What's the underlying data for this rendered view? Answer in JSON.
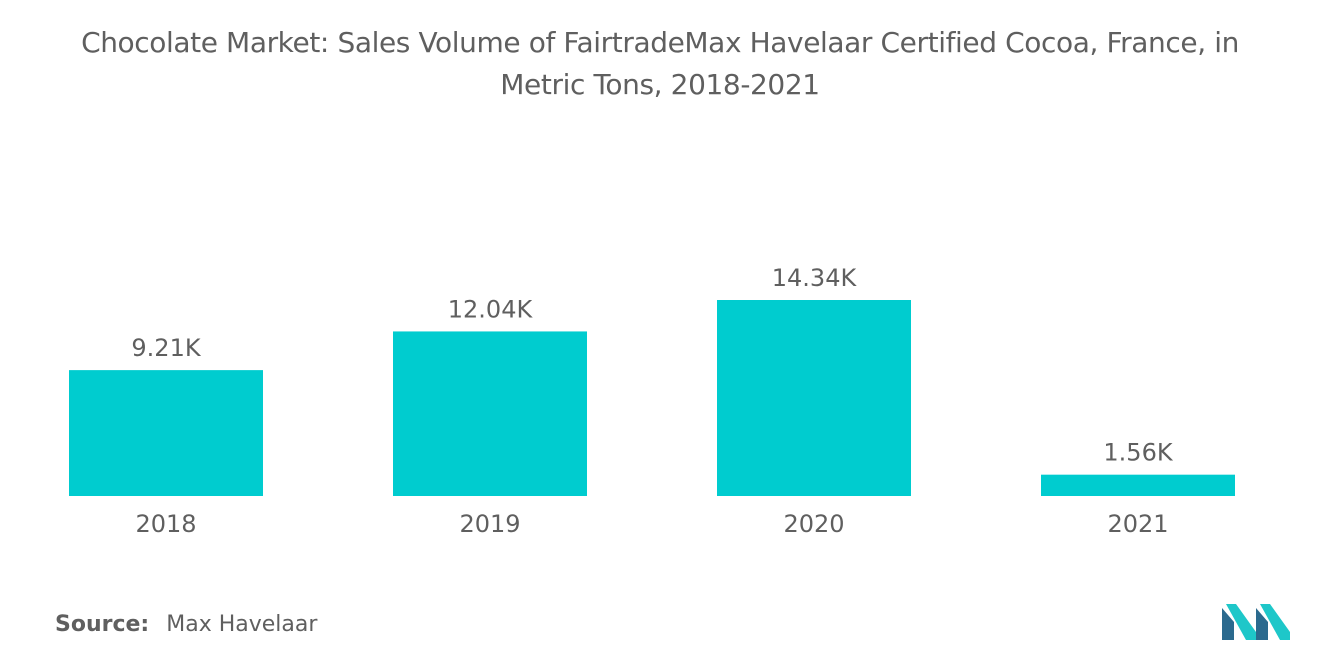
{
  "title": "Chocolate Market: Sales Volume of FairtradeMax Havelaar Certified Cocoa, France, in Metric Tons, 2018-2021",
  "source": {
    "label": "Source:",
    "value": "Max Havelaar"
  },
  "colors": {
    "bar": "#00cccf",
    "text": "#5f5f5f",
    "logo_dark": "#2b6a8e",
    "logo_light": "#1ec7c9"
  },
  "logo": {
    "icon": "mordor-intelligence-logo-icon"
  },
  "chart_data": {
    "type": "bar",
    "title": "Chocolate Market: Sales Volume of FairtradeMax Havelaar Certified Cocoa, France, in Metric Tons, 2018-2021",
    "xlabel": "",
    "ylabel": "",
    "categories": [
      "2018",
      "2019",
      "2020",
      "2021"
    ],
    "values": [
      9210,
      12040,
      14340,
      1560
    ],
    "data_labels": [
      "9.21K",
      "12.04K",
      "14.34K",
      "1.56K"
    ],
    "ylim": [
      0,
      14340
    ],
    "grid": false,
    "legend": "none"
  }
}
